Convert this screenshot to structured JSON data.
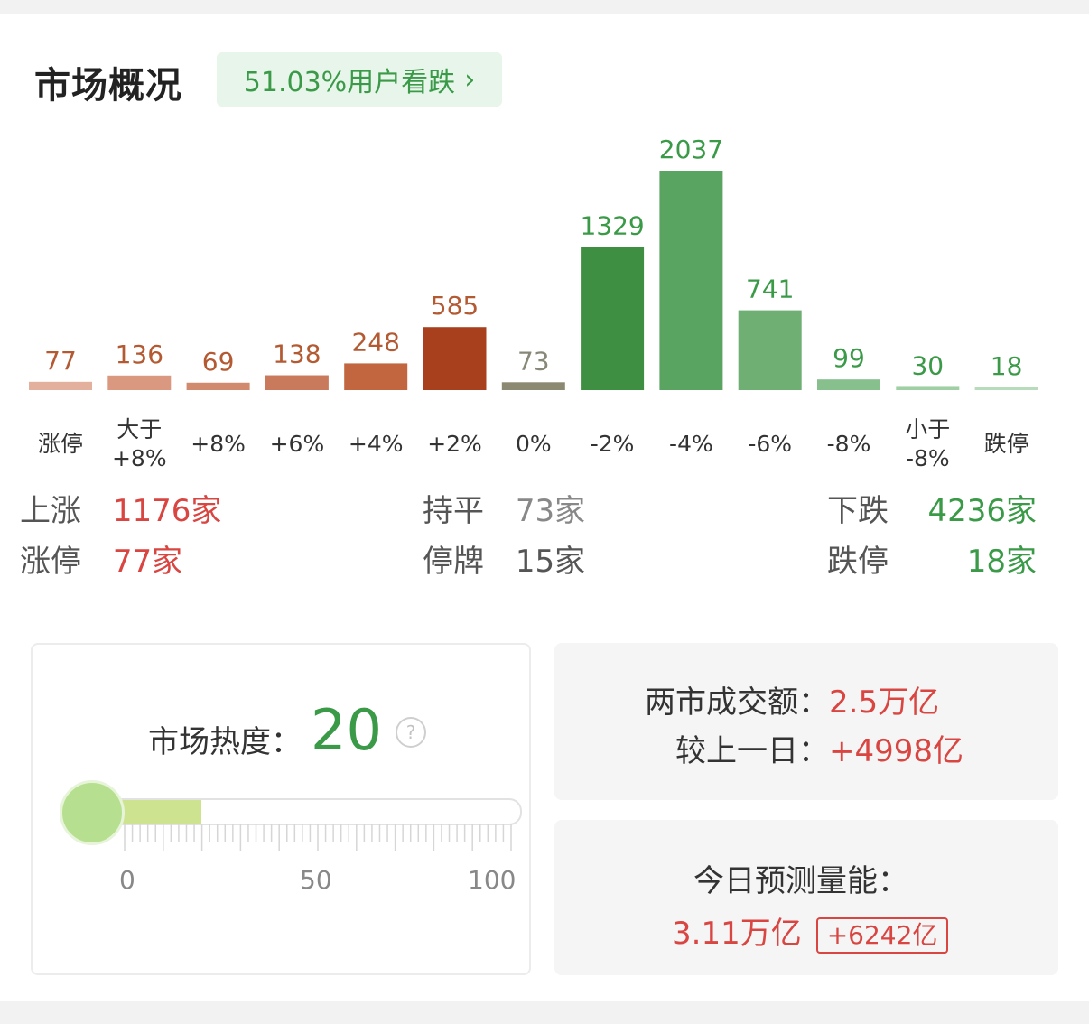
{
  "header": {
    "title": "市场概况",
    "sentiment_label": "51.03%用户看跌",
    "chevron": "›"
  },
  "chart_data": {
    "type": "bar",
    "categories": [
      "涨停",
      "大于\n+8%",
      "+8%",
      "+6%",
      "+4%",
      "+2%",
      "0%",
      "-2%",
      "-4%",
      "-6%",
      "-8%",
      "小于\n-8%",
      "跌停"
    ],
    "values": [
      77,
      136,
      69,
      138,
      248,
      585,
      73,
      1329,
      2037,
      741,
      99,
      30,
      18
    ],
    "colors": [
      "#e2b09d",
      "#d9987f",
      "#d28a6f",
      "#c97a5c",
      "#c2663f",
      "#a8401e",
      "#8c8972",
      "#3f8f42",
      "#5aa462",
      "#6faf74",
      "#87c08c",
      "#9fcfa3",
      "#b8dcbb"
    ],
    "label_colors": [
      "#b35a33",
      "#b35a33",
      "#b35a33",
      "#b35a33",
      "#b35a33",
      "#b35a33",
      "#888878",
      "#3a9a47",
      "#3a9a47",
      "#3a9a47",
      "#3a9a47",
      "#3a9a47",
      "#3a9a47"
    ],
    "ylim": [
      0,
      2037
    ]
  },
  "stats": {
    "up_label": "上涨",
    "up_value": "1176家",
    "limit_up_label": "涨停",
    "limit_up_value": "77家",
    "flat_label": "持平",
    "flat_value": "73家",
    "suspended_label": "停牌",
    "suspended_value": "15家",
    "down_label": "下跌",
    "down_value": "4236家",
    "limit_down_label": "跌停",
    "limit_down_value": "18家"
  },
  "heat": {
    "label": "市场热度：",
    "value": "20",
    "level": 20,
    "help_icon": "?",
    "axis": [
      "0",
      "50",
      "100"
    ]
  },
  "turnover": {
    "label": "两市成交额：",
    "value": "2.5万亿",
    "compare_label": "较上一日：",
    "compare_value": "+4998亿"
  },
  "forecast": {
    "label": "今日预测量能：",
    "value": "3.11万亿",
    "delta": "+6242亿"
  }
}
